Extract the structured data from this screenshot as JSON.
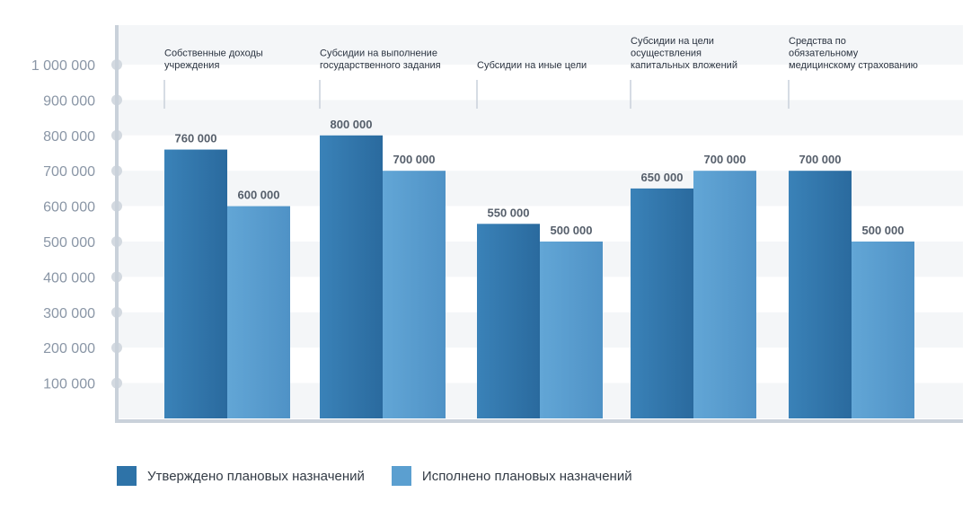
{
  "chart_data": {
    "type": "bar",
    "categories": [
      [
        "Собственные доходы",
        "учреждения"
      ],
      [
        "Субсидии на выполнение",
        "государственного задания"
      ],
      [
        "Субсидии на иные цели"
      ],
      [
        "Субсидии на цели",
        "осуществления",
        "капитальных вложений"
      ],
      [
        "Средства по",
        "обязательному",
        "медицинскому страхованию"
      ]
    ],
    "series": [
      {
        "name": "Утверждено плановых назначений",
        "values": [
          760000,
          800000,
          550000,
          650000,
          700000
        ],
        "value_labels": [
          "760 000",
          "800 000",
          "550 000",
          "650 000",
          "700 000"
        ],
        "color": "#2e73a8"
      },
      {
        "name": "Исполнено плановых назначений",
        "values": [
          600000,
          700000,
          500000,
          700000,
          500000
        ],
        "value_labels": [
          "600 000",
          "700 000",
          "500 000",
          "700 000",
          "500 000"
        ],
        "color": "#5b9fd0"
      }
    ],
    "yticks": [
      {
        "value": 1000000,
        "label": "1 000 000"
      },
      {
        "value": 900000,
        "label": "900 000"
      },
      {
        "value": 800000,
        "label": "800 000"
      },
      {
        "value": 700000,
        "label": "700 000"
      },
      {
        "value": 600000,
        "label": "600 000"
      },
      {
        "value": 500000,
        "label": "500 000"
      },
      {
        "value": 400000,
        "label": "400 000"
      },
      {
        "value": 300000,
        "label": "300 000"
      },
      {
        "value": 200000,
        "label": "200 000"
      },
      {
        "value": 100000,
        "label": "100 000"
      }
    ],
    "ylim": [
      0,
      1000000
    ],
    "grid": true,
    "legend_position": "bottom-left",
    "title": "",
    "xlabel": "",
    "ylabel": ""
  },
  "legend": {
    "items": [
      {
        "label": "Утверждено плановых назначений",
        "color": "#2e73a8"
      },
      {
        "label": "Исполнено плановых назначений",
        "color": "#5b9fd0"
      }
    ]
  }
}
